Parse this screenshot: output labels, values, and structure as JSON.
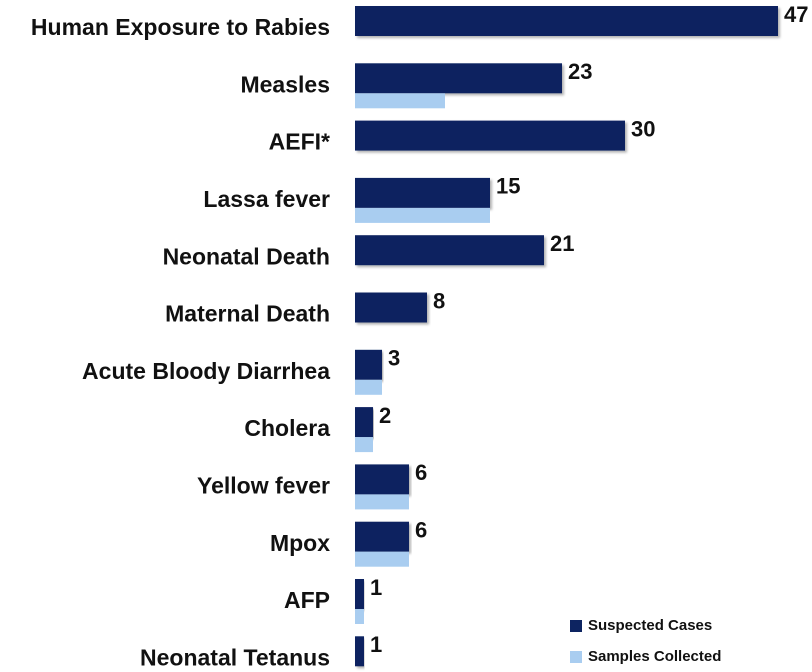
{
  "chart_data": {
    "type": "bar",
    "orientation": "horizontal",
    "categories": [
      "Human Exposure to Rabies",
      "Measles",
      "AEFI*",
      "Lassa fever",
      "Neonatal Death",
      "Maternal Death",
      "Acute Bloody Diarrhea",
      "Cholera",
      "Yellow fever",
      "Mpox",
      "AFP",
      "Neonatal Tetanus"
    ],
    "series": [
      {
        "name": "Suspected Cases",
        "color": "#0d2461",
        "values": [
          47,
          23,
          30,
          15,
          21,
          8,
          3,
          2,
          6,
          6,
          1,
          1
        ]
      },
      {
        "name": "Samples Collected",
        "color": "#a9cdf0",
        "values": [
          0,
          10,
          0,
          15,
          0,
          0,
          3,
          2,
          6,
          6,
          1,
          0
        ]
      }
    ],
    "xlim": [
      0,
      50
    ],
    "legend": "lower right"
  }
}
